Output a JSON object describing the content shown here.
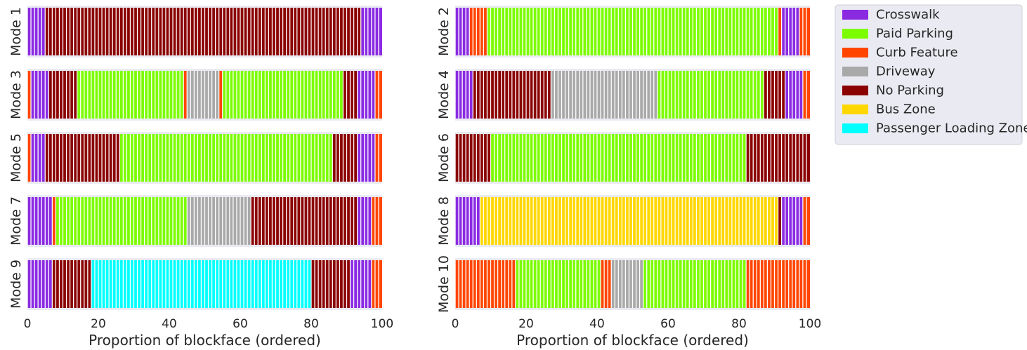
{
  "chart_data": {
    "type": "bar",
    "xlabel": "Proportion of blockface (ordered)",
    "xlim": [
      0,
      100
    ],
    "xticks": [
      "0",
      "20",
      "40",
      "60",
      "80",
      "100"
    ],
    "grid": false,
    "legend_position": "top-right",
    "legend": [
      {
        "name": "Crosswalk",
        "color": "#8a2be2"
      },
      {
        "name": "Paid Parking",
        "color": "#7cfc00"
      },
      {
        "name": "Curb Feature",
        "color": "#ff4500"
      },
      {
        "name": "Driveway",
        "color": "#a9a9a9"
      },
      {
        "name": "No Parking",
        "color": "#8b0000"
      },
      {
        "name": "Bus Zone",
        "color": "#ffd700"
      },
      {
        "name": "Passenger Loading Zone",
        "color": "#00ffff"
      }
    ],
    "modes": [
      {
        "label": "Mode 1",
        "segments": [
          {
            "category": "Crosswalk",
            "start": 0,
            "end": 5
          },
          {
            "category": "No Parking",
            "start": 5,
            "end": 94
          },
          {
            "category": "Crosswalk",
            "start": 94,
            "end": 100
          }
        ]
      },
      {
        "label": "Mode 2",
        "segments": [
          {
            "category": "Crosswalk",
            "start": 0,
            "end": 4
          },
          {
            "category": "Curb Feature",
            "start": 4,
            "end": 9
          },
          {
            "category": "Paid Parking",
            "start": 9,
            "end": 91
          },
          {
            "category": "Curb Feature",
            "start": 91,
            "end": 92
          },
          {
            "category": "Crosswalk",
            "start": 92,
            "end": 97
          },
          {
            "category": "Curb Feature",
            "start": 97,
            "end": 100
          }
        ]
      },
      {
        "label": "Mode 3",
        "segments": [
          {
            "category": "Curb Feature",
            "start": 0,
            "end": 1
          },
          {
            "category": "Crosswalk",
            "start": 1,
            "end": 6
          },
          {
            "category": "No Parking",
            "start": 6,
            "end": 14
          },
          {
            "category": "Paid Parking",
            "start": 14,
            "end": 44
          },
          {
            "category": "Curb Feature",
            "start": 44,
            "end": 45
          },
          {
            "category": "Driveway",
            "start": 45,
            "end": 54
          },
          {
            "category": "Curb Feature",
            "start": 54,
            "end": 55
          },
          {
            "category": "Paid Parking",
            "start": 55,
            "end": 89
          },
          {
            "category": "No Parking",
            "start": 89,
            "end": 93
          },
          {
            "category": "Crosswalk",
            "start": 93,
            "end": 98
          },
          {
            "category": "Curb Feature",
            "start": 98,
            "end": 100
          }
        ]
      },
      {
        "label": "Mode 4",
        "segments": [
          {
            "category": "Crosswalk",
            "start": 0,
            "end": 5
          },
          {
            "category": "No Parking",
            "start": 5,
            "end": 27
          },
          {
            "category": "Driveway",
            "start": 27,
            "end": 57
          },
          {
            "category": "Paid Parking",
            "start": 57,
            "end": 87
          },
          {
            "category": "No Parking",
            "start": 87,
            "end": 93
          },
          {
            "category": "Crosswalk",
            "start": 93,
            "end": 98
          },
          {
            "category": "Curb Feature",
            "start": 98,
            "end": 100
          }
        ]
      },
      {
        "label": "Mode 5",
        "segments": [
          {
            "category": "Curb Feature",
            "start": 0,
            "end": 1
          },
          {
            "category": "Crosswalk",
            "start": 1,
            "end": 5
          },
          {
            "category": "No Parking",
            "start": 5,
            "end": 26
          },
          {
            "category": "Paid Parking",
            "start": 26,
            "end": 86
          },
          {
            "category": "No Parking",
            "start": 86,
            "end": 93
          },
          {
            "category": "Crosswalk",
            "start": 93,
            "end": 98
          },
          {
            "category": "Curb Feature",
            "start": 98,
            "end": 100
          }
        ]
      },
      {
        "label": "Mode 6",
        "segments": [
          {
            "category": "No Parking",
            "start": 0,
            "end": 10
          },
          {
            "category": "Paid Parking",
            "start": 10,
            "end": 82
          },
          {
            "category": "No Parking",
            "start": 82,
            "end": 100
          }
        ]
      },
      {
        "label": "Mode 7",
        "segments": [
          {
            "category": "Crosswalk",
            "start": 0,
            "end": 7
          },
          {
            "category": "Curb Feature",
            "start": 7,
            "end": 8
          },
          {
            "category": "Paid Parking",
            "start": 8,
            "end": 45
          },
          {
            "category": "Driveway",
            "start": 45,
            "end": 63
          },
          {
            "category": "No Parking",
            "start": 63,
            "end": 93
          },
          {
            "category": "Crosswalk",
            "start": 93,
            "end": 97
          },
          {
            "category": "Curb Feature",
            "start": 97,
            "end": 100
          }
        ]
      },
      {
        "label": "Mode 8",
        "segments": [
          {
            "category": "Crosswalk",
            "start": 0,
            "end": 7
          },
          {
            "category": "Bus Zone",
            "start": 7,
            "end": 91
          },
          {
            "category": "No Parking",
            "start": 91,
            "end": 92
          },
          {
            "category": "Crosswalk",
            "start": 92,
            "end": 98
          },
          {
            "category": "Curb Feature",
            "start": 98,
            "end": 100
          }
        ]
      },
      {
        "label": "Mode 9",
        "segments": [
          {
            "category": "Crosswalk",
            "start": 0,
            "end": 7
          },
          {
            "category": "No Parking",
            "start": 7,
            "end": 18
          },
          {
            "category": "Passenger Loading Zone",
            "start": 18,
            "end": 80
          },
          {
            "category": "No Parking",
            "start": 80,
            "end": 91
          },
          {
            "category": "Crosswalk",
            "start": 91,
            "end": 97
          },
          {
            "category": "Curb Feature",
            "start": 97,
            "end": 100
          }
        ]
      },
      {
        "label": "Mode 10",
        "segments": [
          {
            "category": "Curb Feature",
            "start": 0,
            "end": 17
          },
          {
            "category": "Paid Parking",
            "start": 17,
            "end": 41
          },
          {
            "category": "Curb Feature",
            "start": 41,
            "end": 44
          },
          {
            "category": "Driveway",
            "start": 44,
            "end": 53
          },
          {
            "category": "Paid Parking",
            "start": 53,
            "end": 82
          },
          {
            "category": "Curb Feature",
            "start": 82,
            "end": 100
          }
        ]
      }
    ]
  }
}
